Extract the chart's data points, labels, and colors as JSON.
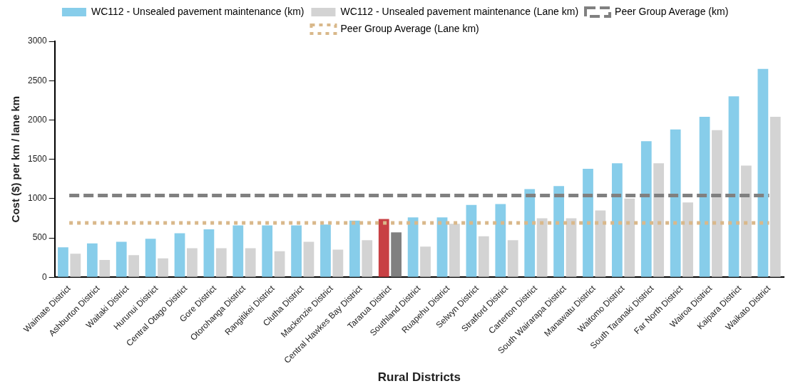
{
  "chart_data": {
    "type": "bar",
    "xlabel": "Rural Districts",
    "ylabel": "Cost ($) per km / lane km",
    "categories": [
      "Waimate District",
      "Ashburton District",
      "Waitaki District",
      "Hurunui District",
      "Central Otago District",
      "Gore District",
      "Otorohanga District",
      "Rangitikei District",
      "Clutha District",
      "Mackenzie District",
      "Central Hawkes Bay District",
      "Tararua District",
      "Southland District",
      "Ruapehu District",
      "Selwyn District",
      "Stratford District",
      "Carterton District",
      "South Wairarapa District",
      "Manawatu District",
      "Waitomo District",
      "South Taranaki District",
      "Far North District",
      "Wairoa District",
      "Kaipara District",
      "Waikato District"
    ],
    "series": [
      {
        "name": "WC112 - Unsealed pavement maintenance (km)",
        "color": "#87cdea",
        "colors": [
          "#87cdea",
          "#87cdea",
          "#87cdea",
          "#87cdea",
          "#87cdea",
          "#87cdea",
          "#87cdea",
          "#87cdea",
          "#87cdea",
          "#87cdea",
          "#87cdea",
          "#c84044",
          "#87cdea",
          "#87cdea",
          "#87cdea",
          "#87cdea",
          "#87cdea",
          "#87cdea",
          "#87cdea",
          "#87cdea",
          "#87cdea",
          "#87cdea",
          "#87cdea",
          "#87cdea",
          "#87cdea"
        ],
        "values": [
          380,
          430,
          450,
          490,
          560,
          610,
          660,
          660,
          660,
          670,
          720,
          740,
          760,
          760,
          920,
          930,
          1120,
          1160,
          1380,
          1450,
          1730,
          1880,
          2040,
          2300,
          2650
        ]
      },
      {
        "name": "WC112 - Unsealed pavement maintenance (Lane km)",
        "color": "#d3d3d3",
        "colors": [
          "#d3d3d3",
          "#d3d3d3",
          "#d3d3d3",
          "#d3d3d3",
          "#d3d3d3",
          "#d3d3d3",
          "#d3d3d3",
          "#d3d3d3",
          "#d3d3d3",
          "#d3d3d3",
          "#d3d3d3",
          "#808080",
          "#d3d3d3",
          "#d3d3d3",
          "#d3d3d3",
          "#d3d3d3",
          "#d3d3d3",
          "#d3d3d3",
          "#d3d3d3",
          "#d3d3d3",
          "#d3d3d3",
          "#d3d3d3",
          "#d3d3d3",
          "#d3d3d3",
          "#d3d3d3"
        ],
        "values": [
          300,
          220,
          280,
          240,
          370,
          370,
          370,
          330,
          450,
          350,
          470,
          570,
          390,
          680,
          520,
          470,
          750,
          750,
          850,
          1000,
          1450,
          950,
          1870,
          1420,
          2040
        ]
      },
      {
        "name": "Peer Group Average (km)",
        "type": "line",
        "line_style": "dashed",
        "color": "#808080",
        "values": [
          1040,
          1040,
          1040,
          1040,
          1040,
          1040,
          1040,
          1040,
          1040,
          1040,
          1040,
          1040,
          1040,
          1040,
          1040,
          1040,
          1040,
          1040,
          1040,
          1040,
          1040,
          1040,
          1040,
          1040,
          1040
        ]
      },
      {
        "name": "Peer Group Average (Lane km)",
        "type": "line",
        "line_style": "dotted",
        "color": "#d9b88a",
        "values": [
          690,
          690,
          690,
          690,
          690,
          690,
          690,
          690,
          690,
          690,
          690,
          690,
          690,
          690,
          690,
          690,
          690,
          690,
          690,
          690,
          690,
          690,
          690,
          690,
          690
        ]
      }
    ],
    "ylim": [
      0,
      3000
    ],
    "yticks": [
      0,
      500,
      1000,
      1500,
      2000,
      2500,
      3000
    ],
    "grid": false,
    "legend": "top",
    "marker": "none"
  }
}
